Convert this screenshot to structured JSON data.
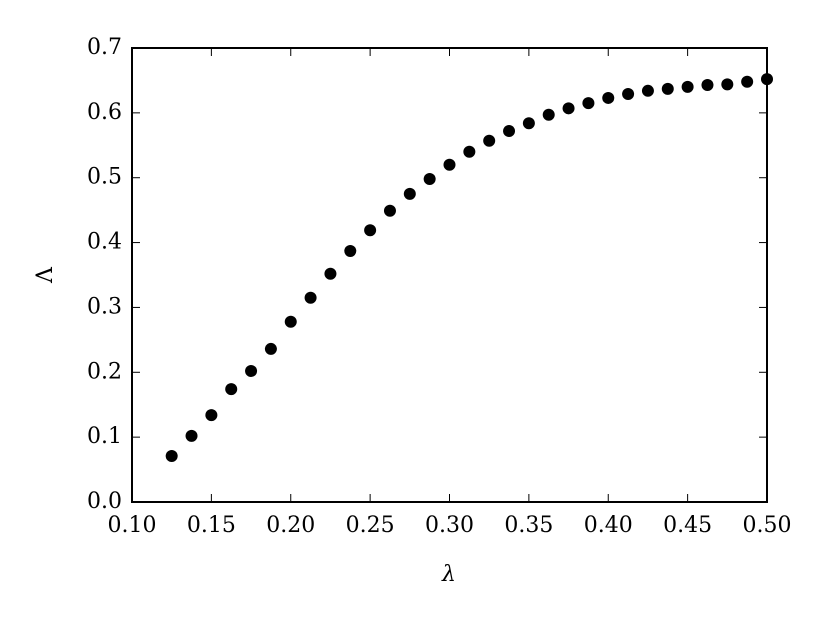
{
  "chart_data": {
    "type": "scatter",
    "xlabel": "λ",
    "ylabel": "Λ",
    "color": "#000000",
    "x": [
      0.125,
      0.1375,
      0.15,
      0.1625,
      0.175,
      0.1875,
      0.2,
      0.2125,
      0.225,
      0.2375,
      0.25,
      0.2625,
      0.275,
      0.2875,
      0.3,
      0.3125,
      0.325,
      0.3375,
      0.35,
      0.3625,
      0.375,
      0.3875,
      0.4,
      0.4125,
      0.425,
      0.4375,
      0.45,
      0.4625,
      0.475,
      0.4875,
      0.5
    ],
    "values": [
      0.071,
      0.102,
      0.134,
      0.174,
      0.202,
      0.236,
      0.278,
      0.315,
      0.352,
      0.387,
      0.419,
      0.449,
      0.475,
      0.498,
      0.52,
      0.54,
      0.557,
      0.572,
      0.584,
      0.597,
      0.607,
      0.615,
      0.623,
      0.629,
      0.634,
      0.637,
      0.64,
      0.643,
      0.644,
      0.648,
      0.652
    ],
    "xlim": [
      0.1,
      0.5
    ],
    "xticks": [
      {
        "value": 0.1,
        "label": "0.10"
      },
      {
        "value": 0.15,
        "label": "0.15"
      },
      {
        "value": 0.2,
        "label": "0.20"
      },
      {
        "value": 0.25,
        "label": "0.25"
      },
      {
        "value": 0.3,
        "label": "0.30"
      },
      {
        "value": 0.35,
        "label": "0.35"
      },
      {
        "value": 0.4,
        "label": "0.40"
      },
      {
        "value": 0.45,
        "label": "0.45"
      },
      {
        "value": 0.5,
        "label": "0.50"
      }
    ],
    "ylim": [
      0,
      0.7
    ],
    "yticks": [
      {
        "value": 0,
        "label": "0.0"
      },
      0.1,
      0.2,
      0.3,
      0.4,
      0.5,
      0.6,
      0.7
    ]
  }
}
